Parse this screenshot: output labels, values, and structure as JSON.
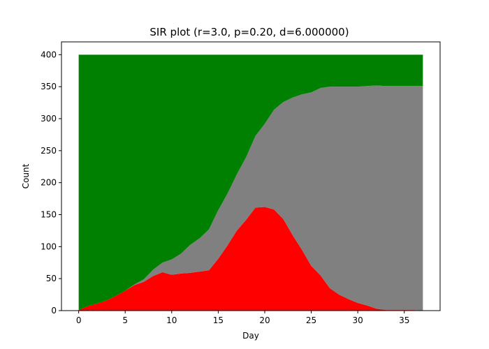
{
  "chart_data": {
    "type": "area",
    "stacked": true,
    "title": "SIR plot (r=3.0, p=0.20, d=6.000000)",
    "xlabel": "Day",
    "ylabel": "Count",
    "xlim": [
      -1.85,
      38.85
    ],
    "ylim": [
      0,
      420
    ],
    "x_ticks": [
      0,
      5,
      10,
      15,
      20,
      25,
      30,
      35
    ],
    "y_ticks": [
      0,
      50,
      100,
      150,
      200,
      250,
      300,
      350,
      400
    ],
    "grid": false,
    "x": [
      0,
      1,
      2,
      3,
      4,
      5,
      6,
      7,
      8,
      9,
      10,
      11,
      12,
      13,
      14,
      15,
      16,
      17,
      18,
      19,
      20,
      21,
      22,
      23,
      24,
      25,
      26,
      27,
      28,
      29,
      30,
      31,
      32,
      33,
      34,
      35,
      36,
      37
    ],
    "series": [
      {
        "color": "#ff0000",
        "values": [
          1,
          7,
          11,
          16,
          23,
          31,
          40,
          45,
          54,
          60,
          56,
          58,
          59,
          61,
          63,
          81,
          102,
          125,
          142,
          161,
          162,
          158,
          143,
          118,
          95,
          70,
          55,
          35,
          25,
          18,
          12,
          8,
          3,
          1,
          1,
          1,
          1,
          0
        ]
      },
      {
        "color": "#808080",
        "values": [
          0,
          0,
          0,
          0,
          0,
          0,
          1,
          4,
          10,
          15,
          24,
          31,
          44,
          52,
          64,
          76,
          81,
          88,
          98,
          112,
          130,
          156,
          183,
          215,
          243,
          271,
          293,
          315,
          325,
          332,
          338,
          343,
          349,
          350,
          350,
          350,
          350,
          351
        ]
      },
      {
        "color": "#008000",
        "values": [
          399,
          393,
          389,
          384,
          377,
          369,
          359,
          351,
          336,
          325,
          320,
          311,
          297,
          287,
          273,
          243,
          217,
          187,
          160,
          127,
          108,
          86,
          74,
          67,
          62,
          59,
          52,
          50,
          50,
          50,
          50,
          49,
          48,
          49,
          49,
          49,
          49,
          49
        ]
      }
    ]
  }
}
